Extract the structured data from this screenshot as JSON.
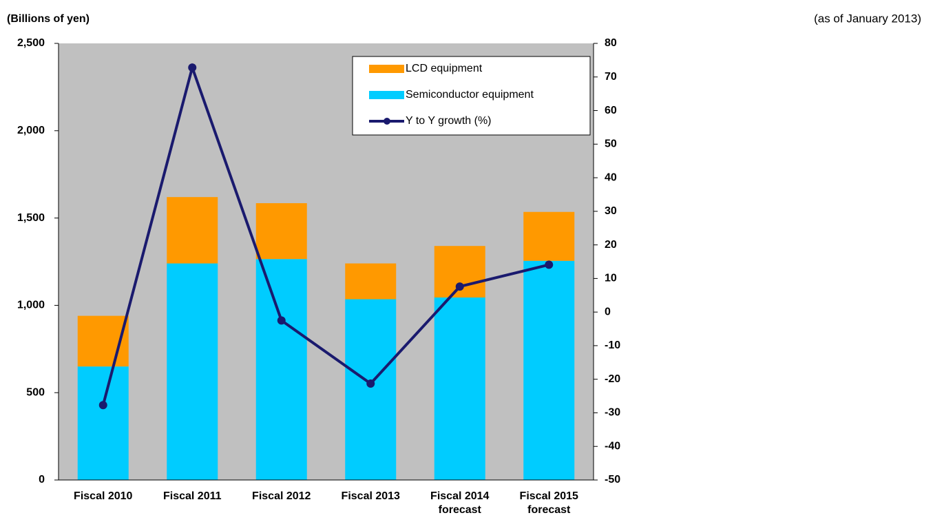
{
  "chart_data": {
    "type": "bar",
    "y_label": "(Billions of yen)",
    "annotation": "(as of January 2013)",
    "categories": [
      "Fiscal 2010",
      "Fiscal 2011",
      "Fiscal 2012",
      "Fiscal 2013",
      "Fiscal 2014 forecast",
      "Fiscal 2015 forecast"
    ],
    "series": [
      {
        "name": "LCD equipment",
        "color": "#ff9900",
        "stacked": true,
        "values": [
          290,
          380,
          320,
          205,
          295,
          280
        ]
      },
      {
        "name": "Semiconductor equipment",
        "color": "#00ccff",
        "stacked": true,
        "values": [
          650,
          1240,
          1265,
          1035,
          1045,
          1255
        ]
      },
      {
        "name": "Y to Y growth (%)",
        "color": "#1a1a6e",
        "type": "line",
        "axis": "y2",
        "values": [
          -27.7,
          72.8,
          -2.5,
          -21.3,
          7.6,
          14.1
        ]
      }
    ],
    "ylim": [
      0,
      2500
    ],
    "yticks": [
      0,
      500,
      {
        "value": 1000,
        "label": "1,000"
      },
      {
        "value": 1500,
        "label": "1,500"
      },
      {
        "value": 2000,
        "label": "2,000"
      },
      {
        "value": 2500,
        "label": "2,500"
      }
    ],
    "y2lim": [
      -50,
      80
    ],
    "y2ticks": [
      -50,
      -40,
      -30,
      -20,
      -10,
      0,
      10,
      20,
      30,
      40,
      50,
      60,
      70,
      80
    ],
    "y2_negative_tick_color": "#ff0000",
    "plot_background": "#c0c0c0",
    "grid": false,
    "legend": "top-right"
  }
}
